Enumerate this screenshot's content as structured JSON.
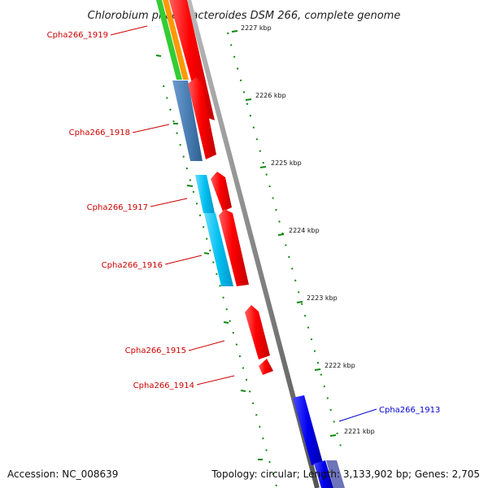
{
  "map": {
    "title": "Chlorobium phaeobacteroides DSM 266, complete genome",
    "accession_text": "Accession: NC_008639",
    "summary_text": "Topology: circular; Length: 3,133,902 bp; Genes: 2,705"
  },
  "gene_labels": [
    {
      "text": "Cpha266_1919",
      "color": "#cc0000"
    },
    {
      "text": "Cpha266_1918",
      "color": "#cc0000"
    },
    {
      "text": "Cpha266_1917",
      "color": "#cc0000"
    },
    {
      "text": "Cpha266_1916",
      "color": "#cc0000"
    },
    {
      "text": "Cpha266_1915",
      "color": "#cc0000"
    },
    {
      "text": "Cpha266_1914",
      "color": "#cc0000"
    },
    {
      "text": "Cpha266_1913",
      "color": "#0000cc"
    }
  ],
  "ticks": [
    "2227 kbp",
    "2226 kbp",
    "2225 kbp",
    "2224 kbp",
    "2223 kbp",
    "2222 kbp",
    "2221 kbp"
  ],
  "colors": {
    "backbone": "#888888",
    "forward_gene": "#ff0000",
    "reverse_gene_blue": "#0000ee",
    "steelblue_track": "#4a7fb5",
    "cyan_track": "#00c0f0",
    "green_track": "#33cc33",
    "orange_track": "#ff9900",
    "tick_green": "#118811"
  }
}
